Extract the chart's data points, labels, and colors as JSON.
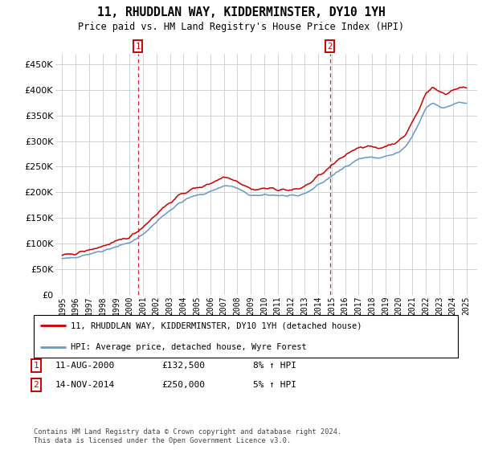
{
  "title": "11, RHUDDLAN WAY, KIDDERMINSTER, DY10 1YH",
  "subtitle": "Price paid vs. HM Land Registry's House Price Index (HPI)",
  "legend_line1": "11, RHUDDLAN WAY, KIDDERMINSTER, DY10 1YH (detached house)",
  "legend_line2": "HPI: Average price, detached house, Wyre Forest",
  "sale1_date": "11-AUG-2000",
  "sale1_price": "£132,500",
  "sale1_hpi": "8% ↑ HPI",
  "sale2_date": "14-NOV-2014",
  "sale2_price": "£250,000",
  "sale2_hpi": "5% ↑ HPI",
  "footnote": "Contains HM Land Registry data © Crown copyright and database right 2024.\nThis data is licensed under the Open Government Licence v3.0.",
  "red_color": "#cc0000",
  "blue_color": "#6699cc",
  "marker1_x": 2000.62,
  "marker2_x": 2014.87,
  "ylim": [
    0,
    470000
  ],
  "xlim_start": 1994.5,
  "xlim_end": 2025.8,
  "background_color": "#ffffff",
  "grid_color": "#cccccc",
  "hpi_years": [
    1995,
    1995.5,
    1996,
    1996.5,
    1997,
    1997.5,
    1998,
    1998.5,
    1999,
    1999.5,
    2000,
    2000.5,
    2001,
    2001.5,
    2002,
    2002.5,
    2003,
    2003.5,
    2004,
    2004.5,
    2005,
    2005.5,
    2006,
    2006.5,
    2007,
    2007.5,
    2008,
    2008.5,
    2009,
    2009.5,
    2010,
    2010.5,
    2011,
    2011.5,
    2012,
    2012.5,
    2013,
    2013.5,
    2014,
    2014.5,
    2015,
    2015.5,
    2016,
    2016.5,
    2017,
    2017.5,
    2018,
    2018.5,
    2019,
    2019.5,
    2020,
    2020.5,
    2021,
    2021.5,
    2022,
    2022.5,
    2023,
    2023.5,
    2024,
    2024.5,
    2025
  ],
  "hpi_vals": [
    70000,
    71000,
    74000,
    77000,
    80000,
    83000,
    86000,
    90000,
    94000,
    98000,
    102000,
    108000,
    118000,
    130000,
    142000,
    155000,
    165000,
    175000,
    183000,
    190000,
    194000,
    197000,
    202000,
    207000,
    213000,
    212000,
    208000,
    200000,
    194000,
    192000,
    196000,
    195000,
    194000,
    193000,
    192000,
    193000,
    198000,
    205000,
    215000,
    222000,
    232000,
    240000,
    250000,
    258000,
    265000,
    268000,
    268000,
    267000,
    270000,
    273000,
    278000,
    288000,
    310000,
    335000,
    365000,
    375000,
    368000,
    365000,
    372000,
    375000,
    374000
  ],
  "red_years": [
    1995,
    1995.5,
    1996,
    1996.5,
    1997,
    1997.5,
    1998,
    1998.5,
    1999,
    1999.5,
    2000,
    2000.5,
    2001,
    2001.5,
    2002,
    2002.5,
    2003,
    2003.5,
    2004,
    2004.5,
    2005,
    2005.5,
    2006,
    2006.5,
    2007,
    2007.5,
    2008,
    2008.5,
    2009,
    2009.5,
    2010,
    2010.5,
    2011,
    2011.5,
    2012,
    2012.5,
    2013,
    2013.5,
    2014,
    2014.5,
    2015,
    2015.5,
    2016,
    2016.5,
    2017,
    2017.5,
    2018,
    2018.5,
    2019,
    2019.5,
    2020,
    2020.5,
    2021,
    2021.5,
    2022,
    2022.5,
    2023,
    2023.5,
    2024,
    2024.5,
    2025
  ],
  "red_vals": [
    76000,
    78000,
    81000,
    84000,
    87000,
    91000,
    95000,
    99000,
    103000,
    108000,
    113000,
    122000,
    133000,
    145000,
    158000,
    170000,
    180000,
    190000,
    198000,
    205000,
    208000,
    212000,
    218000,
    224000,
    230000,
    228000,
    222000,
    214000,
    207000,
    205000,
    208000,
    207000,
    206000,
    205000,
    204000,
    206000,
    212000,
    220000,
    232000,
    240000,
    252000,
    262000,
    272000,
    282000,
    288000,
    290000,
    288000,
    286000,
    290000,
    295000,
    300000,
    313000,
    338000,
    362000,
    395000,
    405000,
    396000,
    392000,
    400000,
    405000,
    402000
  ]
}
